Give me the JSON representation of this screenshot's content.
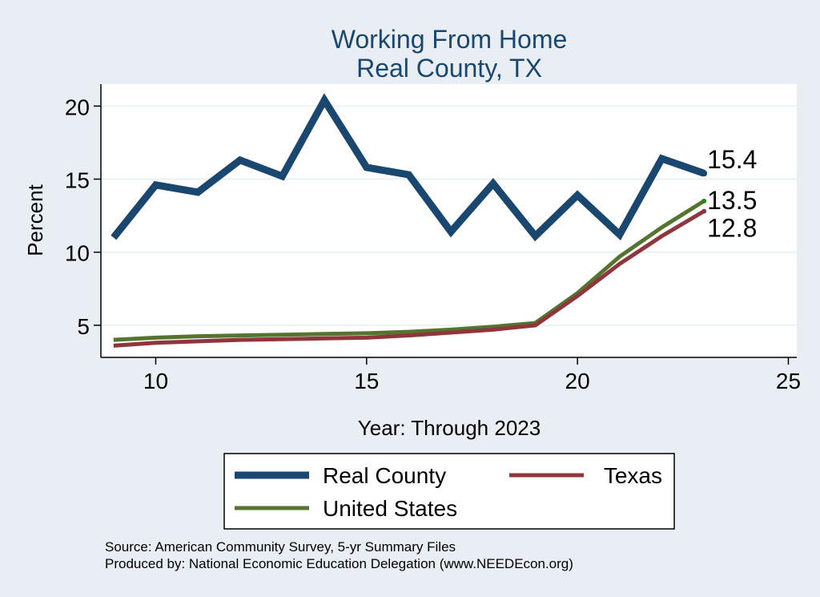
{
  "chart_data": {
    "type": "line",
    "title": "Working From Home",
    "subtitle": "Real County, TX",
    "xlabel": "Year: Through 2023",
    "ylabel": "Percent",
    "xlim": [
      8.7,
      25.2
    ],
    "ylim": [
      2.8,
      21.5
    ],
    "xticks": [
      10,
      15,
      20,
      25
    ],
    "yticks": [
      5,
      10,
      15,
      20
    ],
    "grid": true,
    "legend_position": "bottom",
    "series": [
      {
        "name": "Real County",
        "color": "#1a476f",
        "x": [
          9,
          10,
          11,
          12,
          13,
          14,
          15,
          16,
          17,
          18,
          19,
          20,
          21,
          22,
          23
        ],
        "values": [
          11.0,
          14.6,
          14.1,
          16.3,
          15.2,
          20.4,
          15.8,
          15.3,
          11.4,
          14.7,
          11.1,
          13.9,
          11.2,
          16.4,
          15.4
        ],
        "end_label": "15.4"
      },
      {
        "name": "Texas",
        "color": "#90353b",
        "x": [
          9,
          10,
          11,
          12,
          13,
          14,
          15,
          16,
          17,
          18,
          19,
          20,
          21,
          22,
          23
        ],
        "values": [
          3.6,
          3.8,
          3.9,
          4.0,
          4.05,
          4.1,
          4.15,
          4.3,
          4.5,
          4.7,
          5.0,
          7.0,
          9.2,
          11.1,
          12.8
        ],
        "end_label": "12.8"
      },
      {
        "name": "United States",
        "color": "#55752f",
        "x": [
          9,
          10,
          11,
          12,
          13,
          14,
          15,
          16,
          17,
          18,
          19,
          20,
          21,
          22,
          23
        ],
        "values": [
          4.0,
          4.15,
          4.25,
          4.3,
          4.35,
          4.4,
          4.45,
          4.55,
          4.7,
          4.9,
          5.15,
          7.2,
          9.7,
          11.7,
          13.5
        ],
        "end_label": "13.5"
      }
    ]
  },
  "footer": {
    "source": "Source: American Community Survey, 5-yr Summary Files",
    "produced": "Produced by: National Economic Education Delegation (www.NEEDEcon.org)"
  }
}
